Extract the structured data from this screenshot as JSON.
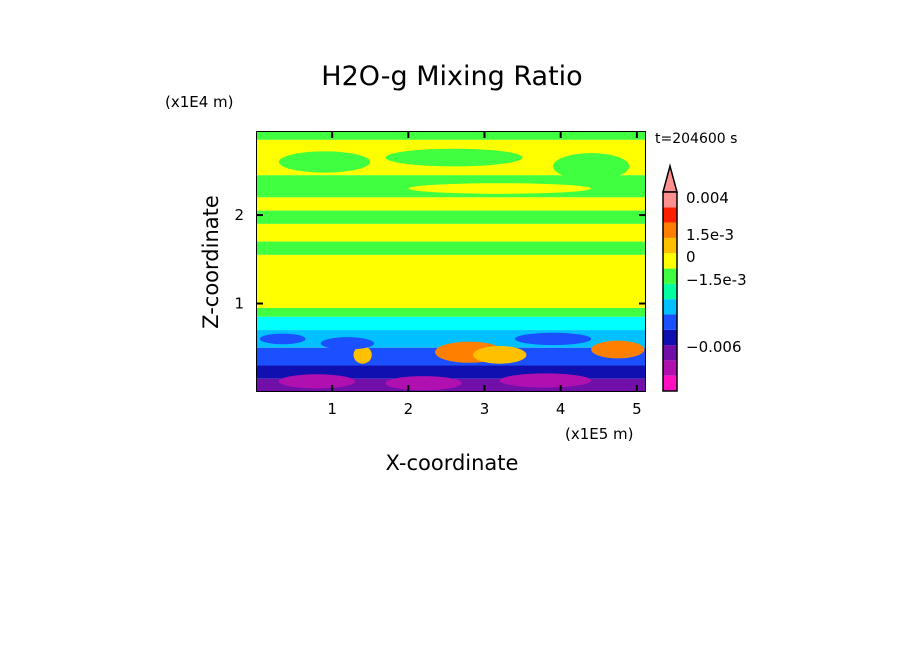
{
  "chart_data": {
    "type": "heatmap",
    "title": "H2O-g Mixing Ratio",
    "xlabel": "X-coordinate",
    "ylabel": "Z-coordinate",
    "x_unit_label": "(x1E5 m)",
    "y_unit_label": "(x1E4 m)",
    "time_label": "t=204600 s",
    "xlim": [
      0,
      5.12
    ],
    "ylim": [
      0,
      2.95
    ],
    "x_ticks": [
      "1",
      "2",
      "3",
      "4",
      "5"
    ],
    "x_tick_values": [
      1,
      2,
      3,
      4,
      5
    ],
    "y_ticks": [
      "1",
      "2"
    ],
    "y_tick_values": [
      1,
      2
    ],
    "colorbar": {
      "colors": [
        "#ff10c0",
        "#b010b0",
        "#7010a8",
        "#1010b0",
        "#1a50ff",
        "#00c0ff",
        "#00ffa0",
        "#40ff40",
        "#ffff00",
        "#ffc000",
        "#ff8000",
        "#ff2000",
        "#ff9090"
      ],
      "labels": [
        "0.004",
        "1.5e-3",
        "0",
        "−1.5e-3",
        "−0.006"
      ],
      "label_levels": [
        0.004,
        0.0015,
        0,
        -0.0015,
        -0.006
      ]
    },
    "bands": [
      {
        "z": [
          2.85,
          2.95
        ],
        "color": "#40ff40"
      },
      {
        "z": [
          2.45,
          2.85
        ],
        "color": "#ffff00"
      },
      {
        "z": [
          2.2,
          2.45
        ],
        "color": "#40ff40"
      },
      {
        "z": [
          2.05,
          2.2
        ],
        "color": "#ffff00"
      },
      {
        "z": [
          1.9,
          2.05
        ],
        "color": "#40ff40"
      },
      {
        "z": [
          1.7,
          1.9
        ],
        "color": "#ffff00"
      },
      {
        "z": [
          1.55,
          1.7
        ],
        "color": "#40ff40"
      },
      {
        "z": [
          0.95,
          1.55
        ],
        "color": "#ffff00"
      },
      {
        "z": [
          0.85,
          0.95
        ],
        "color": "#40ff40"
      },
      {
        "z": [
          0.7,
          0.85
        ],
        "color": "#00ffff"
      },
      {
        "z": [
          0.5,
          0.7
        ],
        "color": "#00c0ff"
      },
      {
        "z": [
          0.3,
          0.5
        ],
        "color": "#1a50ff"
      },
      {
        "z": [
          0.15,
          0.3
        ],
        "color": "#1010b0"
      },
      {
        "z": [
          0.0,
          0.15
        ],
        "color": "#7010a8"
      }
    ],
    "features": [
      {
        "x": 0.9,
        "z": 2.6,
        "rx": 0.6,
        "rz": 0.12,
        "color": "#40ff40"
      },
      {
        "x": 2.6,
        "z": 2.65,
        "rx": 0.9,
        "rz": 0.1,
        "color": "#40ff40"
      },
      {
        "x": 4.4,
        "z": 2.55,
        "rx": 0.5,
        "rz": 0.15,
        "color": "#40ff40"
      },
      {
        "x": 3.2,
        "z": 2.3,
        "rx": 1.2,
        "rz": 0.06,
        "color": "#ffff00"
      },
      {
        "x": 2.8,
        "z": 0.45,
        "rx": 0.45,
        "rz": 0.12,
        "color": "#ff8000"
      },
      {
        "x": 3.2,
        "z": 0.42,
        "rx": 0.35,
        "rz": 0.1,
        "color": "#ffc000"
      },
      {
        "x": 4.75,
        "z": 0.48,
        "rx": 0.35,
        "rz": 0.1,
        "color": "#ff8000"
      },
      {
        "x": 1.4,
        "z": 0.42,
        "rx": 0.12,
        "rz": 0.1,
        "color": "#ffc000"
      },
      {
        "x": 0.35,
        "z": 0.6,
        "rx": 0.3,
        "rz": 0.06,
        "color": "#1a50ff"
      },
      {
        "x": 1.2,
        "z": 0.55,
        "rx": 0.35,
        "rz": 0.07,
        "color": "#1a50ff"
      },
      {
        "x": 3.9,
        "z": 0.6,
        "rx": 0.5,
        "rz": 0.07,
        "color": "#1a50ff"
      },
      {
        "x": 0.8,
        "z": 0.12,
        "rx": 0.5,
        "rz": 0.08,
        "color": "#b010b0"
      },
      {
        "x": 2.2,
        "z": 0.1,
        "rx": 0.5,
        "rz": 0.08,
        "color": "#b010b0"
      },
      {
        "x": 3.8,
        "z": 0.13,
        "rx": 0.6,
        "rz": 0.08,
        "color": "#b010b0"
      }
    ]
  }
}
